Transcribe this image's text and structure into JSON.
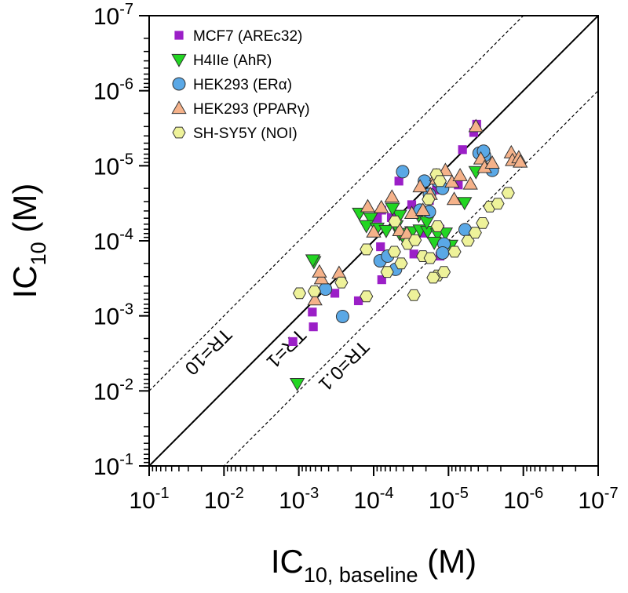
{
  "chart_data": {
    "type": "scatter",
    "x_scale": "log-reversed",
    "y_scale": "log-reversed",
    "xlim": [
      1e-07,
      0.1
    ],
    "ylim": [
      1e-07,
      0.1
    ],
    "xlabel_main": "IC",
    "xlabel_sub": "10, baseline",
    "xlabel_unit": " (M)",
    "ylabel_main": "IC",
    "ylabel_sub": "10",
    "ylabel_unit": " (M)",
    "tick_base": "10",
    "x_ticks": [
      {
        "exp": "-1",
        "v": 0.1
      },
      {
        "exp": "-2",
        "v": 0.01
      },
      {
        "exp": "-3",
        "v": 0.001
      },
      {
        "exp": "-4",
        "v": 0.0001
      },
      {
        "exp": "-5",
        "v": 1e-05
      },
      {
        "exp": "-6",
        "v": 1e-06
      },
      {
        "exp": "-7",
        "v": 1e-07
      }
    ],
    "y_ticks": [
      {
        "exp": "-7",
        "v": 1e-07
      },
      {
        "exp": "-6",
        "v": 1e-06
      },
      {
        "exp": "-5",
        "v": 1e-05
      },
      {
        "exp": "-4",
        "v": 0.0001
      },
      {
        "exp": "-3",
        "v": 0.001
      },
      {
        "exp": "-2",
        "v": 0.01
      },
      {
        "exp": "-1",
        "v": 0.1
      }
    ],
    "reference_lines": [
      {
        "label": "TR=10",
        "ratio": 10,
        "style": "dashed"
      },
      {
        "label": "TR=1",
        "ratio": 1,
        "style": "solid"
      },
      {
        "label": "TR=0.1",
        "ratio": 0.1,
        "style": "dashed"
      }
    ],
    "legend_position": "top-left",
    "series": [
      {
        "name": "MCF7 (AREc32)",
        "marker": "square",
        "color": "#9b1fc7",
        "points": [
          [
            0.00066,
            0.00089
          ],
          [
            0.00064,
            0.0014
          ],
          [
            0.00033,
            0.0005
          ],
          [
            0.0012,
            0.0022
          ],
          [
            0.00016,
            0.00063
          ],
          [
            7.8e-05,
            0.00033
          ],
          [
            1.8e-05,
            2.9e-05
          ],
          [
            4.2e-06,
            2.8e-06
          ],
          [
            4.6e-06,
            3.6e-06
          ],
          [
            6.5e-06,
            6.1e-06
          ],
          [
            8.9e-05,
            5e-05
          ],
          [
            5.8e-05,
            4.9e-05
          ],
          [
            2.1e-05,
            7.9e-05
          ],
          [
            7.8e-05,
            3.9e-05
          ],
          [
            8.1e-05,
            0.00012
          ],
          [
            1.3e-05,
            0.00016
          ],
          [
            2.9e-05,
            0.00015
          ],
          [
            1.3e-05,
            7e-05
          ],
          [
            4.6e-05,
            1.6e-05
          ],
          [
            1.45e-05,
            2.1e-05
          ],
          [
            3.1e-05,
            3.3e-05
          ],
          [
            7.4e-06,
            1.8e-05
          ]
        ]
      },
      {
        "name": "H4IIe (AhR)",
        "marker": "triangle-down",
        "color": "#22d622",
        "points": [
          [
            0.00105,
            0.008
          ],
          [
            0.00063,
            0.00019
          ],
          [
            0.00065,
            0.00018
          ],
          [
            0.000155,
            4.3e-05
          ],
          [
            0.00011,
            5e-05
          ],
          [
            0.000125,
            6.3e-05
          ],
          [
            9e-05,
            6.8e-05
          ],
          [
            6.8e-05,
            7.3e-05
          ],
          [
            4.5e-05,
            8e-05
          ],
          [
            3.1e-05,
            7.6e-05
          ],
          [
            2.4e-05,
            7.2e-05
          ],
          [
            1.9e-05,
            7.5e-05
          ],
          [
            1.4e-05,
            8.1e-05
          ],
          [
            1.1e-05,
            7.9e-05
          ],
          [
            4.5e-05,
            4.6e-05
          ],
          [
            5e-05,
            6.3e-05
          ],
          [
            2.5e-05,
            4.6e-05
          ],
          [
            1.95e-05,
            5.6e-05
          ],
          [
            3.8e-05,
            9.8e-05
          ],
          [
            1.55e-05,
            0.000105
          ],
          [
            9.3e-06,
            0.000115
          ],
          [
            5.6e-05,
            3.7e-05
          ],
          [
            4.3e-06,
            1.2e-05
          ],
          [
            6.1e-06,
            3.1e-05
          ]
        ]
      },
      {
        "name": "HEK293 (ERα)",
        "marker": "circle",
        "color": "#5aa8e6",
        "points": [
          [
            0.00044,
            0.00044
          ],
          [
            0.00026,
            0.00102
          ],
          [
            8.2e-05,
            0.000185
          ],
          [
            6.5e-05,
            0.00016
          ],
          [
            5.1e-05,
            0.00024
          ],
          [
            4.1e-05,
            1.2e-05
          ],
          [
            1.8e-05,
            4.1e-05
          ],
          [
            1.4e-05,
            1.6e-05
          ],
          [
            1.15e-05,
            0.00011
          ],
          [
            1.2e-05,
            0.000145
          ],
          [
            6e-06,
            7.1e-05
          ],
          [
            3.3e-06,
            7.3e-06
          ],
          [
            3.9e-06,
            6.8e-06
          ],
          [
            3.4e-06,
            6.4e-06
          ],
          [
            2.6e-06,
            1.15e-05
          ],
          [
            1.8e-05,
            2.4e-05
          ],
          [
            1.2e-05,
            2e-05
          ],
          [
            2.1e-05,
            1.6e-05
          ],
          [
            2.4e-05,
            3.9e-05
          ]
        ]
      },
      {
        "name": "HEK293 (PPARγ)",
        "marker": "triangle-up",
        "color": "#f5b28a",
        "points": [
          [
            0.00061,
            0.00061
          ],
          [
            0.0005,
            0.00032
          ],
          [
            0.00029,
            0.00027
          ],
          [
            0.00053,
            0.00026
          ],
          [
            0.00012,
            3.5e-05
          ],
          [
            0.0001,
            7.6e-05
          ],
          [
            7.9e-05,
            3.6e-05
          ],
          [
            5.7e-05,
            2.6e-05
          ],
          [
            4.5e-05,
            7.3e-05
          ],
          [
            3.6e-05,
            8e-05
          ],
          [
            3.1e-05,
            4.3e-05
          ],
          [
            2.4e-05,
            1.9e-05
          ],
          [
            2.2e-05,
            3.9e-05
          ],
          [
            1.75e-05,
            2.4e-05
          ],
          [
            1.45e-05,
            1.35e-05
          ],
          [
            1.1e-05,
            1.15e-05
          ],
          [
            9e-06,
            1.65e-05
          ],
          [
            8.4e-06,
            2.8e-05
          ],
          [
            7e-06,
            1.35e-05
          ],
          [
            5.1e-06,
            1.75e-05
          ],
          [
            4.3e-06,
            3e-06
          ],
          [
            3.7e-06,
            8.1e-06
          ],
          [
            3.3e-06,
            1.05e-05
          ],
          [
            2.6e-06,
            9.2e-06
          ],
          [
            1.45e-06,
            6.7e-06
          ],
          [
            1.4e-06,
            8.5e-06
          ],
          [
            1.15e-06,
            7.8e-06
          ],
          [
            1.1e-06,
            8.9e-06
          ],
          [
            1.45e-05,
            1.5e-05
          ]
        ]
      },
      {
        "name": "SH-SY5Y (NOI)",
        "marker": "hexagon",
        "color": "#eef29a",
        "points": [
          [
            0.00098,
            0.0005
          ],
          [
            0.00062,
            0.00047
          ],
          [
            0.00027,
            0.00036
          ],
          [
            0.000125,
            0.00013
          ],
          [
            6.6e-05,
            0.00026
          ],
          [
            5.3e-05,
            0.00014
          ],
          [
            4.3e-05,
            0.0002
          ],
          [
            3.5e-05,
            0.00011
          ],
          [
            2.8e-05,
            9.8e-05
          ],
          [
            2.2e-05,
            0.00016
          ],
          [
            1.75e-05,
            0.00017
          ],
          [
            1.4e-05,
            0.00029
          ],
          [
            1.15e-05,
            0.00026
          ],
          [
            8.3e-06,
            0.00014
          ],
          [
            5.5e-06,
            0.0001
          ],
          [
            4.4e-06,
            7.8e-05
          ],
          [
            3.5e-06,
            5.8e-05
          ],
          [
            2.8e-06,
            3.5e-05
          ],
          [
            2.2e-06,
            3.2e-05
          ],
          [
            1.6e-06,
            2.3e-05
          ],
          [
            0.000125,
            0.00055
          ],
          [
            2.9e-05,
            0.00053
          ],
          [
            1.6e-05,
            0.00031
          ],
          [
            1.45e-05,
            1.3e-05
          ],
          [
            1.85e-05,
            2.8e-05
          ],
          [
            1.3e-05,
            1.6e-05
          ],
          [
            5.2e-05,
            5.5e-05
          ],
          [
            1.4e-05,
            6.4e-05
          ]
        ]
      }
    ]
  }
}
